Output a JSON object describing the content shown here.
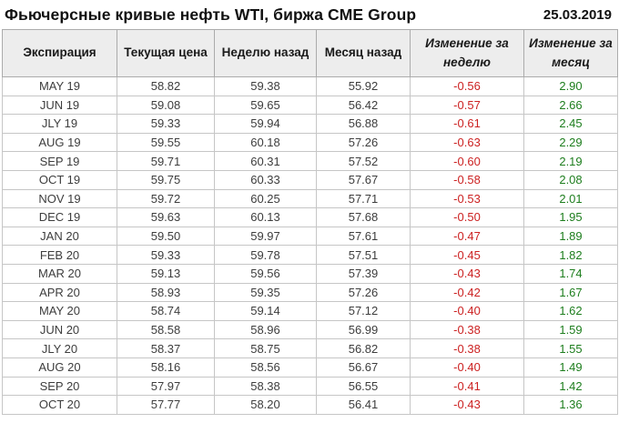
{
  "header": {
    "title": "Фьючерсные кривые нефть WTI, биржа CME Group",
    "date": "25.03.2019"
  },
  "colors": {
    "negative": "#cc2222",
    "positive": "#1e7e1e",
    "header_bg": "#ededed",
    "border": "#c6c6c6"
  },
  "table": {
    "columns": [
      "Экспирация",
      "Текущая цена",
      "Неделю назад",
      "Месяц назад",
      "Изменение за неделю",
      "Изменение за месяц"
    ],
    "column_keys": [
      "expiration",
      "current-price",
      "week-ago",
      "month-ago",
      "week-change",
      "month-change"
    ],
    "change_column_indexes": [
      4,
      5
    ],
    "rows": [
      [
        "MAY 19",
        "58.82",
        "59.38",
        "55.92",
        "-0.56",
        "2.90"
      ],
      [
        "JUN 19",
        "59.08",
        "59.65",
        "56.42",
        "-0.57",
        "2.66"
      ],
      [
        "JLY 19",
        "59.33",
        "59.94",
        "56.88",
        "-0.61",
        "2.45"
      ],
      [
        "AUG 19",
        "59.55",
        "60.18",
        "57.26",
        "-0.63",
        "2.29"
      ],
      [
        "SEP 19",
        "59.71",
        "60.31",
        "57.52",
        "-0.60",
        "2.19"
      ],
      [
        "OCT 19",
        "59.75",
        "60.33",
        "57.67",
        "-0.58",
        "2.08"
      ],
      [
        "NOV 19",
        "59.72",
        "60.25",
        "57.71",
        "-0.53",
        "2.01"
      ],
      [
        "DEC 19",
        "59.63",
        "60.13",
        "57.68",
        "-0.50",
        "1.95"
      ],
      [
        "JAN 20",
        "59.50",
        "59.97",
        "57.61",
        "-0.47",
        "1.89"
      ],
      [
        "FEB 20",
        "59.33",
        "59.78",
        "57.51",
        "-0.45",
        "1.82"
      ],
      [
        "MAR 20",
        "59.13",
        "59.56",
        "57.39",
        "-0.43",
        "1.74"
      ],
      [
        "APR 20",
        "58.93",
        "59.35",
        "57.26",
        "-0.42",
        "1.67"
      ],
      [
        "MAY 20",
        "58.74",
        "59.14",
        "57.12",
        "-0.40",
        "1.62"
      ],
      [
        "JUN 20",
        "58.58",
        "58.96",
        "56.99",
        "-0.38",
        "1.59"
      ],
      [
        "JLY 20",
        "58.37",
        "58.75",
        "56.82",
        "-0.38",
        "1.55"
      ],
      [
        "AUG 20",
        "58.16",
        "58.56",
        "56.67",
        "-0.40",
        "1.49"
      ],
      [
        "SEP 20",
        "57.97",
        "58.38",
        "56.55",
        "-0.41",
        "1.42"
      ],
      [
        "OCT 20",
        "57.77",
        "58.20",
        "56.41",
        "-0.43",
        "1.36"
      ]
    ]
  },
  "chart_data": {
    "type": "table",
    "title": "Фьючерсные кривые нефть WTI, биржа CME Group",
    "date": "25.03.2019",
    "columns": [
      "Экспирация",
      "Текущая цена",
      "Неделю назад",
      "Месяц назад",
      "Изменение за неделю",
      "Изменение за месяц"
    ],
    "categories": [
      "MAY 19",
      "JUN 19",
      "JLY 19",
      "AUG 19",
      "SEP 19",
      "OCT 19",
      "NOV 19",
      "DEC 19",
      "JAN 20",
      "FEB 20",
      "MAR 20",
      "APR 20",
      "MAY 20",
      "JUN 20",
      "JLY 20",
      "AUG 20",
      "SEP 20",
      "OCT 20"
    ],
    "series": [
      {
        "name": "Текущая цена",
        "values": [
          58.82,
          59.08,
          59.33,
          59.55,
          59.71,
          59.75,
          59.72,
          59.63,
          59.5,
          59.33,
          59.13,
          58.93,
          58.74,
          58.58,
          58.37,
          58.16,
          57.97,
          57.77
        ]
      },
      {
        "name": "Неделю назад",
        "values": [
          59.38,
          59.65,
          59.94,
          60.18,
          60.31,
          60.33,
          60.25,
          60.13,
          59.97,
          59.78,
          59.56,
          59.35,
          59.14,
          58.96,
          58.75,
          58.56,
          58.38,
          58.2
        ]
      },
      {
        "name": "Месяц назад",
        "values": [
          55.92,
          56.42,
          56.88,
          57.26,
          57.52,
          57.67,
          57.71,
          57.68,
          57.61,
          57.51,
          57.39,
          57.26,
          57.12,
          56.99,
          56.82,
          56.67,
          56.55,
          56.41
        ]
      },
      {
        "name": "Изменение за неделю",
        "values": [
          -0.56,
          -0.57,
          -0.61,
          -0.63,
          -0.6,
          -0.58,
          -0.53,
          -0.5,
          -0.47,
          -0.45,
          -0.43,
          -0.42,
          -0.4,
          -0.38,
          -0.38,
          -0.4,
          -0.41,
          -0.43
        ]
      },
      {
        "name": "Изменение за месяц",
        "values": [
          2.9,
          2.66,
          2.45,
          2.29,
          2.19,
          2.08,
          2.01,
          1.95,
          1.89,
          1.82,
          1.74,
          1.67,
          1.62,
          1.59,
          1.55,
          1.49,
          1.42,
          1.36
        ]
      }
    ]
  }
}
